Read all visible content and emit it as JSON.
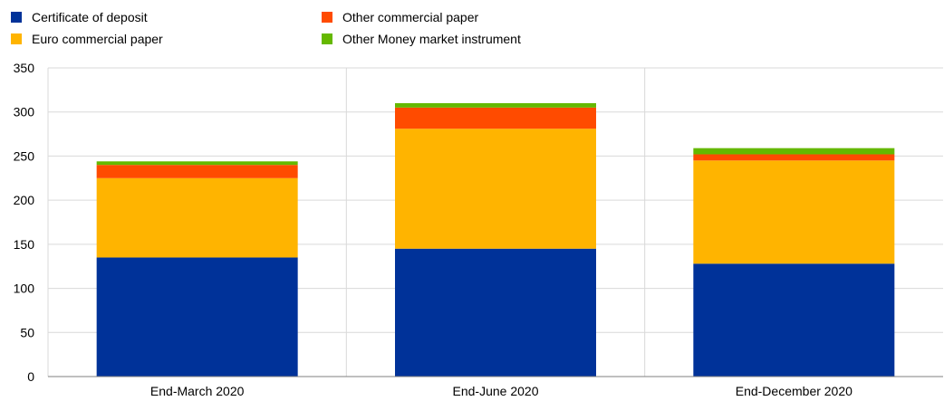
{
  "chart_data": {
    "type": "bar",
    "stacked": true,
    "title": "",
    "xlabel": "",
    "ylabel": "",
    "categories": [
      "End-March 2020",
      "End-June 2020",
      "End-December 2020"
    ],
    "series": [
      {
        "name": "Certificate of deposit",
        "color": "#003299",
        "values": [
          135,
          145,
          128
        ]
      },
      {
        "name": "Euro commercial paper",
        "color": "#ffb400",
        "values": [
          90,
          136,
          117
        ]
      },
      {
        "name": "Other commercial paper",
        "color": "#ff4b00",
        "values": [
          15,
          24,
          7
        ]
      },
      {
        "name": "Other Money market instrument",
        "color": "#65b800",
        "values": [
          4,
          5,
          7
        ]
      }
    ],
    "ylim": [
      0,
      350
    ],
    "yticks": [
      0,
      50,
      100,
      150,
      200,
      250,
      300,
      350
    ],
    "grid": true,
    "legend_position": "top-left"
  }
}
